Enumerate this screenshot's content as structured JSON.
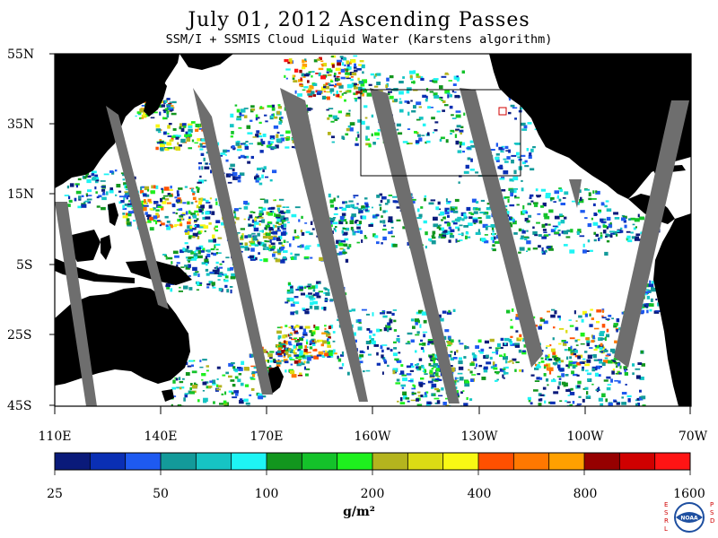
{
  "title": "July 01, 2012  Ascending Passes",
  "subtitle": "SSM/I + SSMIS Cloud Liquid Water (Karstens algorithm)",
  "lat_labels": [
    "55N",
    "35N",
    "15N",
    "5S",
    "25S",
    "45S"
  ],
  "lon_labels": [
    "110E",
    "140E",
    "170E",
    "160W",
    "130W",
    "100W",
    "70W"
  ],
  "colorbar": {
    "tick_labels": [
      "25",
      "50",
      "100",
      "200",
      "400",
      "800",
      "1600"
    ],
    "colors": [
      "#0a1a7a",
      "#0a2fb4",
      "#1e5af0",
      "#139a9a",
      "#16c4c4",
      "#1ef4f4",
      "#12961e",
      "#14c22a",
      "#1ef01e",
      "#b4b41e",
      "#dcdc14",
      "#f8f814",
      "#ff5000",
      "#ff7800",
      "#ffa000",
      "#960000",
      "#d00000",
      "#ff1414"
    ]
  },
  "unit": "g/m²",
  "logo": {
    "left_text": "ESRL",
    "right_text": "PSD",
    "badge": "NOAA"
  }
}
